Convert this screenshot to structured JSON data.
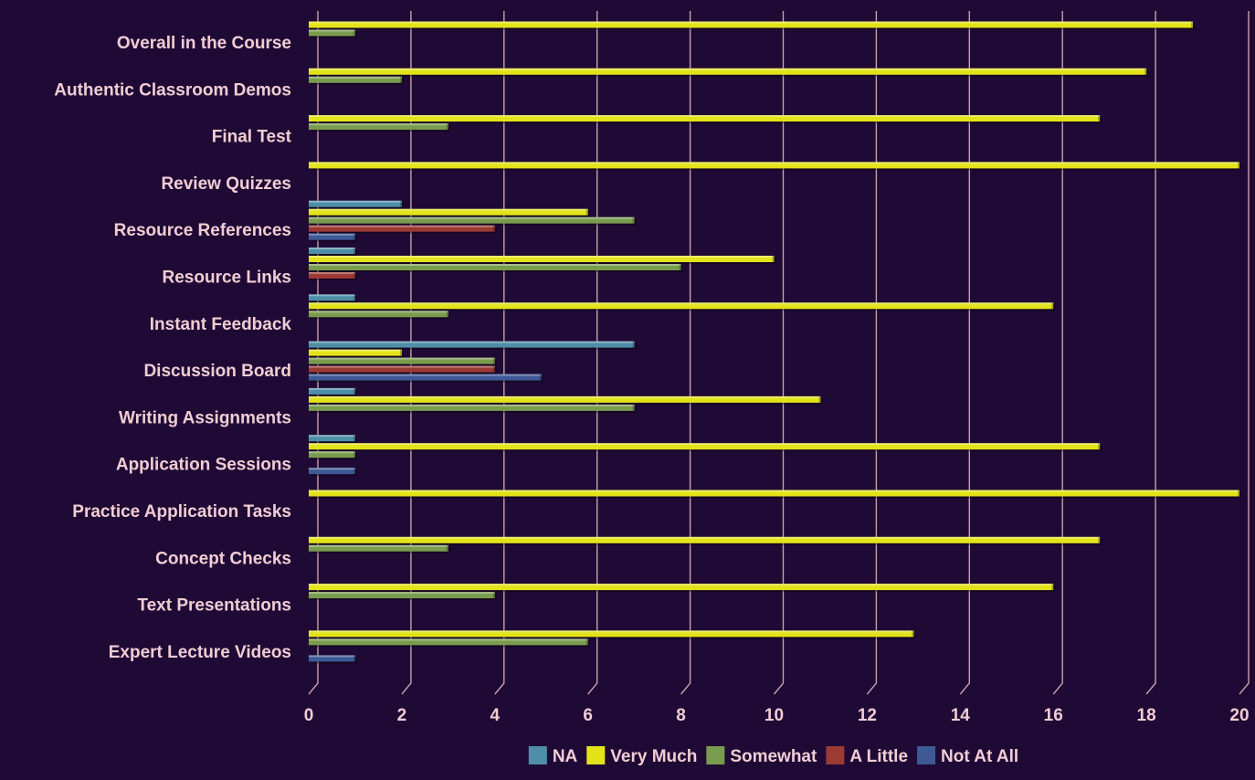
{
  "chart_data": {
    "type": "bar",
    "orientation": "horizontal",
    "categories": [
      "Overall in the Course",
      "Authentic Classroom Demos",
      "Final Test",
      "Review Quizzes",
      "Resource References",
      "Resource Links",
      "Instant Feedback",
      "Discussion Board",
      "Writing Assignments",
      "Application Sessions",
      "Practice Application Tasks",
      "Concept Checks",
      "Text Presentations",
      "Expert Lecture Videos"
    ],
    "series": [
      {
        "name": "NA",
        "color": "#4f8ea8",
        "values": [
          0,
          0,
          0,
          0,
          2,
          1,
          1,
          7,
          1,
          1,
          0,
          0,
          0,
          0
        ]
      },
      {
        "name": "Very Much",
        "color": "#e3e31a",
        "values": [
          19,
          18,
          17,
          20,
          6,
          10,
          16,
          2,
          11,
          17,
          20,
          17,
          16,
          13
        ]
      },
      {
        "name": "Somewhat",
        "color": "#7a9c4e",
        "values": [
          1,
          2,
          3,
          0,
          7,
          8,
          3,
          4,
          7,
          1,
          0,
          3,
          4,
          6
        ]
      },
      {
        "name": "A Little",
        "color": "#9c3a34",
        "values": [
          0,
          0,
          0,
          0,
          4,
          1,
          0,
          4,
          0,
          0,
          0,
          0,
          0,
          0
        ]
      },
      {
        "name": "Not At All",
        "color": "#3e5a96",
        "values": [
          0,
          0,
          0,
          0,
          1,
          0,
          0,
          5,
          0,
          1,
          0,
          0,
          0,
          1
        ]
      }
    ],
    "x_ticks": [
      "0",
      "2",
      "4",
      "6",
      "8",
      "10",
      "12",
      "14",
      "16",
      "18",
      "20"
    ],
    "xlim": [
      0,
      20
    ],
    "grid": true,
    "legend_position": "bottom",
    "colors": {
      "background": "#1f0a36",
      "gridline": "#c9a0a8",
      "text": "#f1cdd3"
    }
  }
}
